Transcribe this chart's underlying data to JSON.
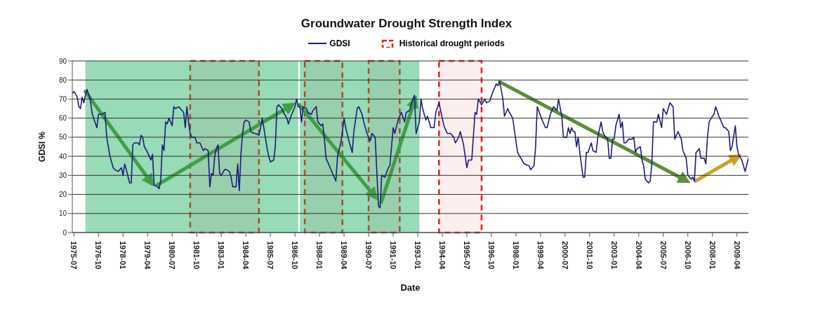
{
  "chart_data": {
    "type": "line",
    "title": "Groundwater Drought Strength Index",
    "xlabel": "Date",
    "ylabel": "GDSI %",
    "legend": "top",
    "grid": "y",
    "xlim": [
      "1975-06",
      "2009-11"
    ],
    "xticks": [
      "1975-07",
      "1976-10",
      "1978-01",
      "1979-04",
      "1980-07",
      "1981-10",
      "1983-01",
      "1984-04",
      "1985-07",
      "1986-10",
      "1988-01",
      "1989-04",
      "1990-07",
      "1991-10",
      "1993-01",
      "1994-04",
      "1995-07",
      "1996-10",
      "1998-01",
      "1999-04",
      "2000-07",
      "2001-10",
      "2003-01",
      "2004-04",
      "2005-07",
      "2006-10",
      "2008-01",
      "2009-04"
    ],
    "ylim": [
      0,
      90
    ],
    "yticks": [
      0,
      10,
      20,
      30,
      40,
      50,
      60,
      70,
      80,
      90
    ],
    "bands": [
      {
        "axis": "x",
        "from": "1976-02",
        "to": "1986-12",
        "color": "#97dbb7"
      },
      {
        "axis": "x",
        "from": "1987-01",
        "to": "1993-02",
        "color": "#97dbb7"
      },
      {
        "axis": "x",
        "from": "1981-06",
        "to": "1984-12",
        "color": "#a0522d"
      },
      {
        "axis": "x",
        "from": "1987-04",
        "to": "1989-03",
        "color": "#a0522d"
      },
      {
        "axis": "x",
        "from": "1990-07",
        "to": "1992-02",
        "color": "#a0522d"
      },
      {
        "axis": "x",
        "from": "1994-02",
        "to": "1996-04",
        "label": "Historical drought periods",
        "color": "#e02020"
      }
    ],
    "x": [
      "1975-06",
      "1975-07",
      "1975-09",
      "1975-10",
      "1975-11",
      "1975-12",
      "1976-01",
      "1976-02",
      "1976-03",
      "1976-05",
      "1976-06",
      "1976-07",
      "1976-09",
      "1976-10",
      "1976-12",
      "1977-02",
      "1977-03",
      "1977-05",
      "1977-07",
      "1977-08",
      "1977-10",
      "1977-12",
      "1978-01",
      "1978-02",
      "1978-03",
      "1978-05",
      "1978-06",
      "1978-07",
      "1978-08",
      "1978-10",
      "1978-11",
      "1978-12",
      "1979-01",
      "1979-02",
      "1979-04",
      "1979-05",
      "1979-06",
      "1979-07",
      "1979-08",
      "1979-10",
      "1979-11",
      "1979-12",
      "1980-01",
      "1980-02",
      "1980-03",
      "1980-04",
      "1980-05",
      "1980-07",
      "1980-08",
      "1980-09",
      "1980-11",
      "1981-01",
      "1981-02",
      "1981-03",
      "1981-04",
      "1981-05",
      "1981-06",
      "1981-07",
      "1981-09",
      "1981-10",
      "1981-12",
      "1982-01",
      "1982-02",
      "1982-03",
      "1982-05",
      "1982-06",
      "1982-07",
      "1982-08",
      "1982-09",
      "1982-10",
      "1982-11",
      "1982-12",
      "1983-01",
      "1983-03",
      "1983-04",
      "1983-06",
      "1983-07",
      "1983-08",
      "1983-10",
      "1983-11",
      "1983-12",
      "1984-01",
      "1984-02",
      "1984-03",
      "1984-04",
      "1984-06",
      "1984-07",
      "1984-09",
      "1984-10",
      "1984-12",
      "1985-01",
      "1985-02",
      "1985-03",
      "1985-05",
      "1985-06",
      "1985-07",
      "1985-09",
      "1985-10",
      "1985-11",
      "1985-12",
      "1986-02",
      "1986-03",
      "1986-05",
      "1986-06",
      "1986-08",
      "1986-10",
      "1986-11",
      "1986-12",
      "1987-01",
      "1987-02",
      "1987-03",
      "1987-05",
      "1987-06",
      "1987-08",
      "1987-09",
      "1987-11",
      "1987-12",
      "1988-02",
      "1988-03",
      "1988-04",
      "1988-05",
      "1988-07",
      "1988-11",
      "1988-12",
      "1989-02",
      "1989-03",
      "1989-04",
      "1989-05",
      "1989-07",
      "1989-09",
      "1989-10",
      "1989-12",
      "1990-01",
      "1990-03",
      "1990-04",
      "1990-06",
      "1990-08",
      "1990-09",
      "1990-11",
      "1991-01",
      "1991-02",
      "1991-03",
      "1991-05",
      "1991-07",
      "1991-08",
      "1991-10",
      "1991-11",
      "1992-01",
      "1992-03",
      "1992-05",
      "1992-06",
      "1992-08",
      "1992-10",
      "1992-11",
      "1992-12",
      "1993-02",
      "1993-03",
      "1993-04",
      "1993-06",
      "1993-07",
      "1993-09",
      "1993-11",
      "1993-12",
      "1994-02",
      "1994-04",
      "1994-05",
      "1994-07",
      "1994-09",
      "1994-11",
      "1994-12",
      "1995-02",
      "1995-03",
      "1995-05",
      "1995-07",
      "1995-08",
      "1995-10",
      "1995-12",
      "1996-01",
      "1996-02",
      "1996-04",
      "1996-06",
      "1996-07",
      "1996-09",
      "1996-11",
      "1997-01",
      "1997-02",
      "1997-03",
      "1997-04",
      "1997-05",
      "1997-06",
      "1997-08",
      "1997-09",
      "1997-11",
      "1998-02",
      "1998-04",
      "1998-06",
      "1998-09",
      "1998-10",
      "1998-12",
      "1999-01",
      "1999-02",
      "1999-05",
      "1999-07",
      "1999-08",
      "1999-10",
      "1999-12",
      "2000-02",
      "2000-03",
      "2000-05",
      "2000-06",
      "2000-08",
      "2000-09",
      "2000-10",
      "2000-11",
      "2000-12",
      "2001-01",
      "2001-02",
      "2001-03",
      "2001-04",
      "2001-06",
      "2001-07",
      "2001-08",
      "2001-09",
      "2001-11",
      "2001-12",
      "2002-02",
      "2002-03",
      "2002-05",
      "2002-06",
      "2002-07",
      "2002-09",
      "2002-10",
      "2002-11",
      "2002-12",
      "2003-01",
      "2003-02",
      "2003-04",
      "2003-05",
      "2003-06",
      "2003-07",
      "2003-08",
      "2003-10",
      "2003-12",
      "2004-01",
      "2004-02",
      "2004-03",
      "2004-05",
      "2004-06",
      "2004-07",
      "2004-08",
      "2004-10",
      "2004-11",
      "2004-12",
      "2005-01",
      "2005-03",
      "2005-04",
      "2005-06",
      "2005-07",
      "2005-09",
      "2005-11",
      "2006-01",
      "2006-02",
      "2006-04",
      "2006-06",
      "2006-07",
      "2006-09",
      "2006-10",
      "2006-12",
      "2007-01",
      "2007-02",
      "2007-03",
      "2007-05",
      "2007-06",
      "2007-08",
      "2007-09",
      "2007-10",
      "2007-11",
      "2008-01",
      "2008-02",
      "2008-03",
      "2008-05",
      "2008-06",
      "2008-08",
      "2008-09",
      "2008-11",
      "2008-12",
      "2009-01",
      "2009-03",
      "2009-04",
      "2009-05",
      "2009-07",
      "2009-09",
      "2009-11"
    ],
    "series": [
      {
        "name": "GDSI",
        "color": "#1c1c7a",
        "values": [
          73,
          74,
          71,
          66,
          65,
          71,
          68,
          72,
          75,
          70,
          63,
          60,
          55,
          62,
          62,
          63,
          50,
          40,
          34,
          33,
          32,
          34,
          30,
          36,
          33,
          26,
          26,
          46,
          47,
          47,
          46,
          51,
          50,
          45,
          42,
          40,
          38,
          41,
          25,
          24,
          23,
          27,
          46,
          43,
          58,
          57,
          60,
          56,
          66,
          65,
          66,
          64,
          63,
          55,
          66,
          58,
          52,
          50,
          50,
          47,
          47,
          45,
          43,
          44,
          43,
          24,
          31,
          30,
          40,
          44,
          46,
          31,
          30,
          33,
          33,
          32,
          29,
          24,
          24,
          36,
          22,
          41,
          52,
          58,
          59,
          58,
          53,
          52,
          52,
          51,
          55,
          60,
          55,
          44,
          40,
          37,
          38,
          45,
          66,
          67,
          65,
          63,
          60,
          57,
          62,
          66,
          70,
          66,
          66,
          58,
          66,
          65,
          63,
          62,
          64,
          66,
          58,
          56,
          57,
          49,
          39,
          35,
          27,
          40,
          47,
          53,
          60,
          55,
          48,
          42,
          53,
          65,
          66,
          62,
          58,
          52,
          48,
          52,
          50,
          14,
          13,
          30,
          29,
          34,
          35,
          55,
          52,
          59,
          63,
          58,
          63,
          64,
          70,
          72,
          52,
          58,
          70,
          65,
          59,
          61,
          55,
          55,
          63,
          68,
          60,
          56,
          52,
          52,
          50,
          47,
          50,
          53,
          46,
          34,
          38,
          38,
          63,
          62,
          70,
          67,
          70,
          68,
          69,
          74,
          78,
          77,
          79,
          75,
          70,
          61,
          65,
          63,
          60,
          42,
          39,
          36,
          35,
          33,
          35,
          45,
          66,
          59,
          55,
          55,
          62,
          66,
          64,
          70,
          61,
          50,
          50,
          55,
          52,
          55,
          53,
          53,
          45,
          50,
          42,
          29,
          29,
          42,
          42,
          47,
          43,
          42,
          50,
          58,
          53,
          51,
          49,
          39,
          39,
          49,
          49,
          56,
          62,
          55,
          58,
          47,
          47,
          49,
          49,
          50,
          42,
          44,
          45,
          38,
          35,
          28,
          26,
          27,
          36,
          58,
          58,
          62,
          55,
          65,
          62,
          68,
          66,
          49,
          53,
          49,
          43,
          39,
          30,
          28,
          29,
          27,
          42,
          44,
          39,
          39,
          36,
          50,
          58,
          61,
          62,
          66,
          61,
          59,
          55,
          55,
          53,
          43,
          45,
          56,
          45,
          41,
          38,
          32,
          39
        ]
      }
    ]
  }
}
